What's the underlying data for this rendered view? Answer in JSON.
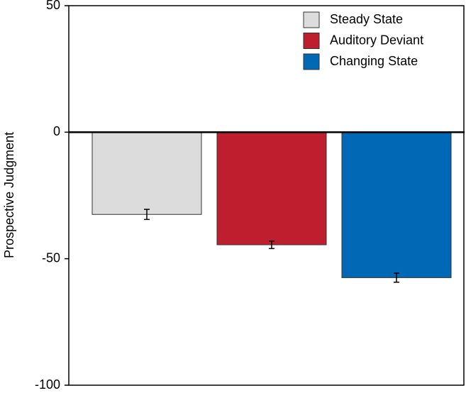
{
  "chart_data": {
    "type": "bar",
    "ylabel": "Prospective Judgment",
    "series": [
      {
        "name": "Steady State",
        "color": "#dcdcdc",
        "values": [
          -32.5
        ],
        "errors": [
          2
        ]
      },
      {
        "name": "Auditory Deviant",
        "color": "#be1e2d",
        "values": [
          -44.5
        ],
        "errors": [
          1.5
        ]
      },
      {
        "name": "Changing State",
        "color": "#0068b4",
        "values": [
          -57.5
        ],
        "errors": [
          1.8
        ]
      }
    ],
    "ylim": [
      -100,
      50
    ],
    "yticks": [
      -100,
      -50,
      0,
      50
    ],
    "legend": "upper right"
  }
}
